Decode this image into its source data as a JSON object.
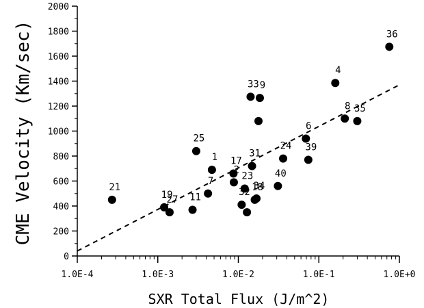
{
  "chart_data": {
    "type": "scatter",
    "xlabel": "SXR Total Flux (J/m^2)",
    "ylabel": "CME Velocity (Km/sec)",
    "xscale": "log",
    "xlim": [
      0.0001,
      1.0
    ],
    "ylim": [
      0,
      2000
    ],
    "x_tick_labels": [
      "1.0E-4",
      "1.0E-3",
      "1.0E-2",
      "1.0E-1",
      "1.0E+0"
    ],
    "y_ticks": [
      0,
      200,
      400,
      600,
      800,
      1000,
      1200,
      1400,
      1600,
      1800,
      2000
    ],
    "grid": false,
    "points": [
      {
        "label": "21",
        "x": 0.00027,
        "y": 450
      },
      {
        "label": "19",
        "x": 0.0012,
        "y": 390
      },
      {
        "label": "27",
        "x": 0.0014,
        "y": 350
      },
      {
        "label": "11",
        "x": 0.0027,
        "y": 370
      },
      {
        "label": "25",
        "x": 0.003,
        "y": 840
      },
      {
        "label": "7",
        "x": 0.0042,
        "y": 500
      },
      {
        "label": "1",
        "x": 0.0047,
        "y": 690
      },
      {
        "label": "2",
        "x": 0.0088,
        "y": 590
      },
      {
        "label": "17",
        "x": 0.0087,
        "y": 660
      },
      {
        "label": "32",
        "x": 0.011,
        "y": 410
      },
      {
        "label": "23",
        "x": 0.012,
        "y": 540
      },
      {
        "label": "",
        "x": 0.0128,
        "y": 350
      },
      {
        "label": "31",
        "x": 0.0148,
        "y": 720
      },
      {
        "label": "18",
        "x": 0.016,
        "y": 450
      },
      {
        "label": "34",
        "x": 0.0168,
        "y": 460
      },
      {
        "label": "33",
        "x": 0.0142,
        "y": 1275
      },
      {
        "label": "9",
        "x": 0.0185,
        "y": 1265
      },
      {
        "label": "",
        "x": 0.0178,
        "y": 1080
      },
      {
        "label": "24",
        "x": 0.036,
        "y": 780
      },
      {
        "label": "40",
        "x": 0.031,
        "y": 560
      },
      {
        "label": "6",
        "x": 0.069,
        "y": 940
      },
      {
        "label": "39",
        "x": 0.074,
        "y": 770
      },
      {
        "label": "4",
        "x": 0.16,
        "y": 1385
      },
      {
        "label": "8",
        "x": 0.21,
        "y": 1100
      },
      {
        "label": "35",
        "x": 0.3,
        "y": 1080
      },
      {
        "label": "36",
        "x": 0.75,
        "y": 1675
      }
    ],
    "fit_line": {
      "style": "dashed",
      "x": [
        0.0001,
        1.0
      ],
      "y": [
        40,
        1370
      ]
    }
  }
}
